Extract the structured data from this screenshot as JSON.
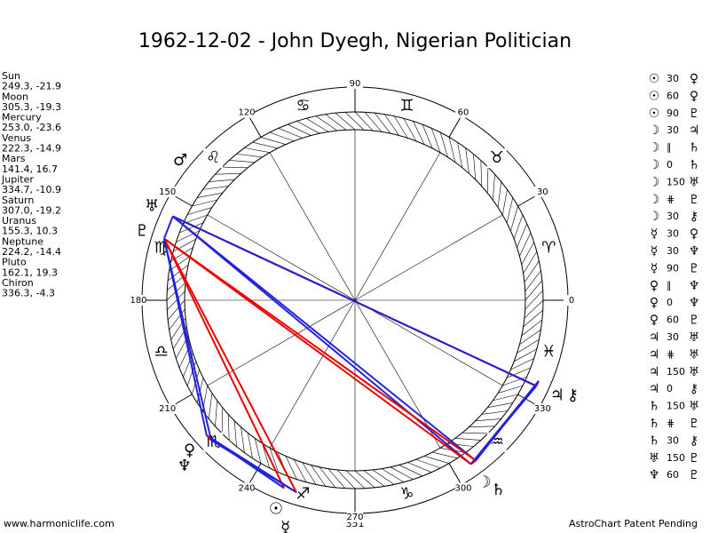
{
  "title": "1962-12-02 - John Dyegh, Nigerian Politician",
  "planets": [
    {
      "name": "Sun",
      "glyph": "☉",
      "position": "249.3, -21.9"
    },
    {
      "name": "Moon",
      "glyph": "☽",
      "position": "305.3, -19.3"
    },
    {
      "name": "Mercury",
      "glyph": "☿",
      "position": "253.0, -23.6"
    },
    {
      "name": "Venus",
      "glyph": "♀",
      "position": "222.3, -14.9"
    },
    {
      "name": "Mars",
      "glyph": "♂",
      "position": "141.4, 16.7"
    },
    {
      "name": "Jupiter",
      "glyph": "♃",
      "position": "334.7, -10.9"
    },
    {
      "name": "Saturn",
      "glyph": "♄",
      "position": "307.0, -19.2"
    },
    {
      "name": "Uranus",
      "glyph": "♅",
      "position": "155.3, 10.3"
    },
    {
      "name": "Neptune",
      "glyph": "♆",
      "position": "224.2, -14.4"
    },
    {
      "name": "Pluto",
      "glyph": "♇",
      "position": "162.1, 19.3"
    },
    {
      "name": "Chiron",
      "glyph": "⚷",
      "position": "336.3, -4.3"
    }
  ],
  "signs": [
    "♈",
    "♉",
    "♊",
    "♋",
    "♌",
    "♍",
    "♎",
    "♏",
    "♐",
    "♑",
    "♒",
    "♓"
  ],
  "degrees": [
    0,
    30,
    60,
    90,
    120,
    150,
    180,
    210,
    240,
    270,
    300,
    330
  ],
  "aspects": [
    {
      "from": "☉",
      "aspect": "30",
      "to": "♀"
    },
    {
      "from": "☉",
      "aspect": "60",
      "to": "♀"
    },
    {
      "from": "☉",
      "aspect": "90",
      "to": "♇"
    },
    {
      "from": "☽",
      "aspect": "30",
      "to": "♃"
    },
    {
      "from": "☽",
      "aspect": "∥",
      "to": "♄"
    },
    {
      "from": "☽",
      "aspect": "0",
      "to": "♄"
    },
    {
      "from": "☽",
      "aspect": "150",
      "to": "♅"
    },
    {
      "from": "☽",
      "aspect": "⋕",
      "to": "♇"
    },
    {
      "from": "☽",
      "aspect": "30",
      "to": "⚷"
    },
    {
      "from": "☿",
      "aspect": "30",
      "to": "♀"
    },
    {
      "from": "☿",
      "aspect": "30",
      "to": "♆"
    },
    {
      "from": "☿",
      "aspect": "90",
      "to": "♇"
    },
    {
      "from": "♀",
      "aspect": "∥",
      "to": "♆"
    },
    {
      "from": "♀",
      "aspect": "0",
      "to": "♆"
    },
    {
      "from": "♀",
      "aspect": "60",
      "to": "♇"
    },
    {
      "from": "♃",
      "aspect": "30",
      "to": "♅"
    },
    {
      "from": "♃",
      "aspect": "⋕",
      "to": "♅"
    },
    {
      "from": "♃",
      "aspect": "150",
      "to": "♅"
    },
    {
      "from": "♃",
      "aspect": "0",
      "to": "⚷"
    },
    {
      "from": "♄",
      "aspect": "150",
      "to": "♅"
    },
    {
      "from": "♄",
      "aspect": "⋕",
      "to": "♇"
    },
    {
      "from": "♄",
      "aspect": "30",
      "to": "⚷"
    },
    {
      "from": "♅",
      "aspect": "150",
      "to": "♇"
    },
    {
      "from": "♆",
      "aspect": "60",
      "to": "♇"
    }
  ],
  "footer": {
    "left": "www.harmoniclife.com",
    "center": "351",
    "right": "AstroChart Patent Pending"
  }
}
